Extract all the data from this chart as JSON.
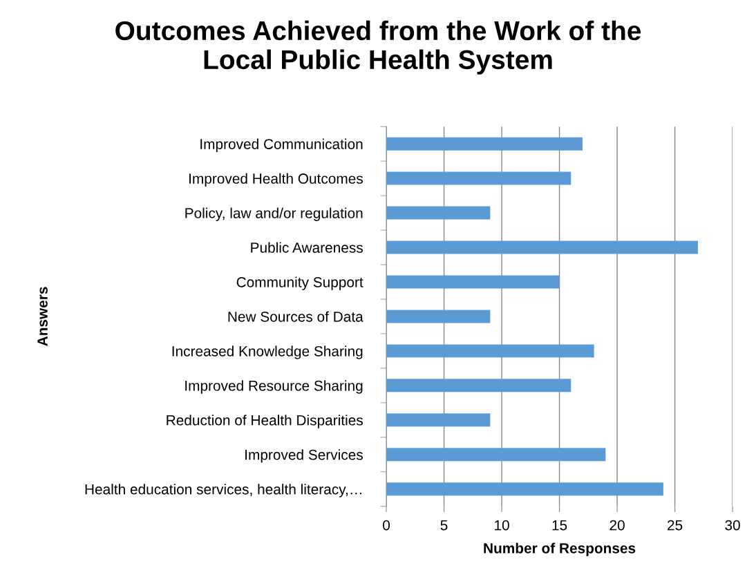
{
  "chart_data": {
    "type": "bar",
    "orientation": "horizontal",
    "title": "Outcomes Achieved from the Work of the\nLocal Public Health System",
    "xlabel": "Number of Responses",
    "ylabel": "Answers",
    "categories": [
      "Improved Communication",
      "Improved Health Outcomes",
      "Policy, law and/or regulation",
      "Public Awareness",
      "Community Support",
      "New Sources of Data",
      "Increased Knowledge Sharing",
      "Improved Resource Sharing",
      "Reduction of Health Disparities",
      "Improved Services",
      "Health education services, health literacy,…"
    ],
    "values": [
      17,
      16,
      9,
      27,
      15,
      9,
      18,
      16,
      9,
      19,
      24
    ],
    "color": "#5b9bd5",
    "xlim": [
      0,
      30
    ],
    "xticks": [
      0,
      5,
      10,
      15,
      20,
      25,
      30
    ],
    "grid": "x",
    "legend": false
  }
}
